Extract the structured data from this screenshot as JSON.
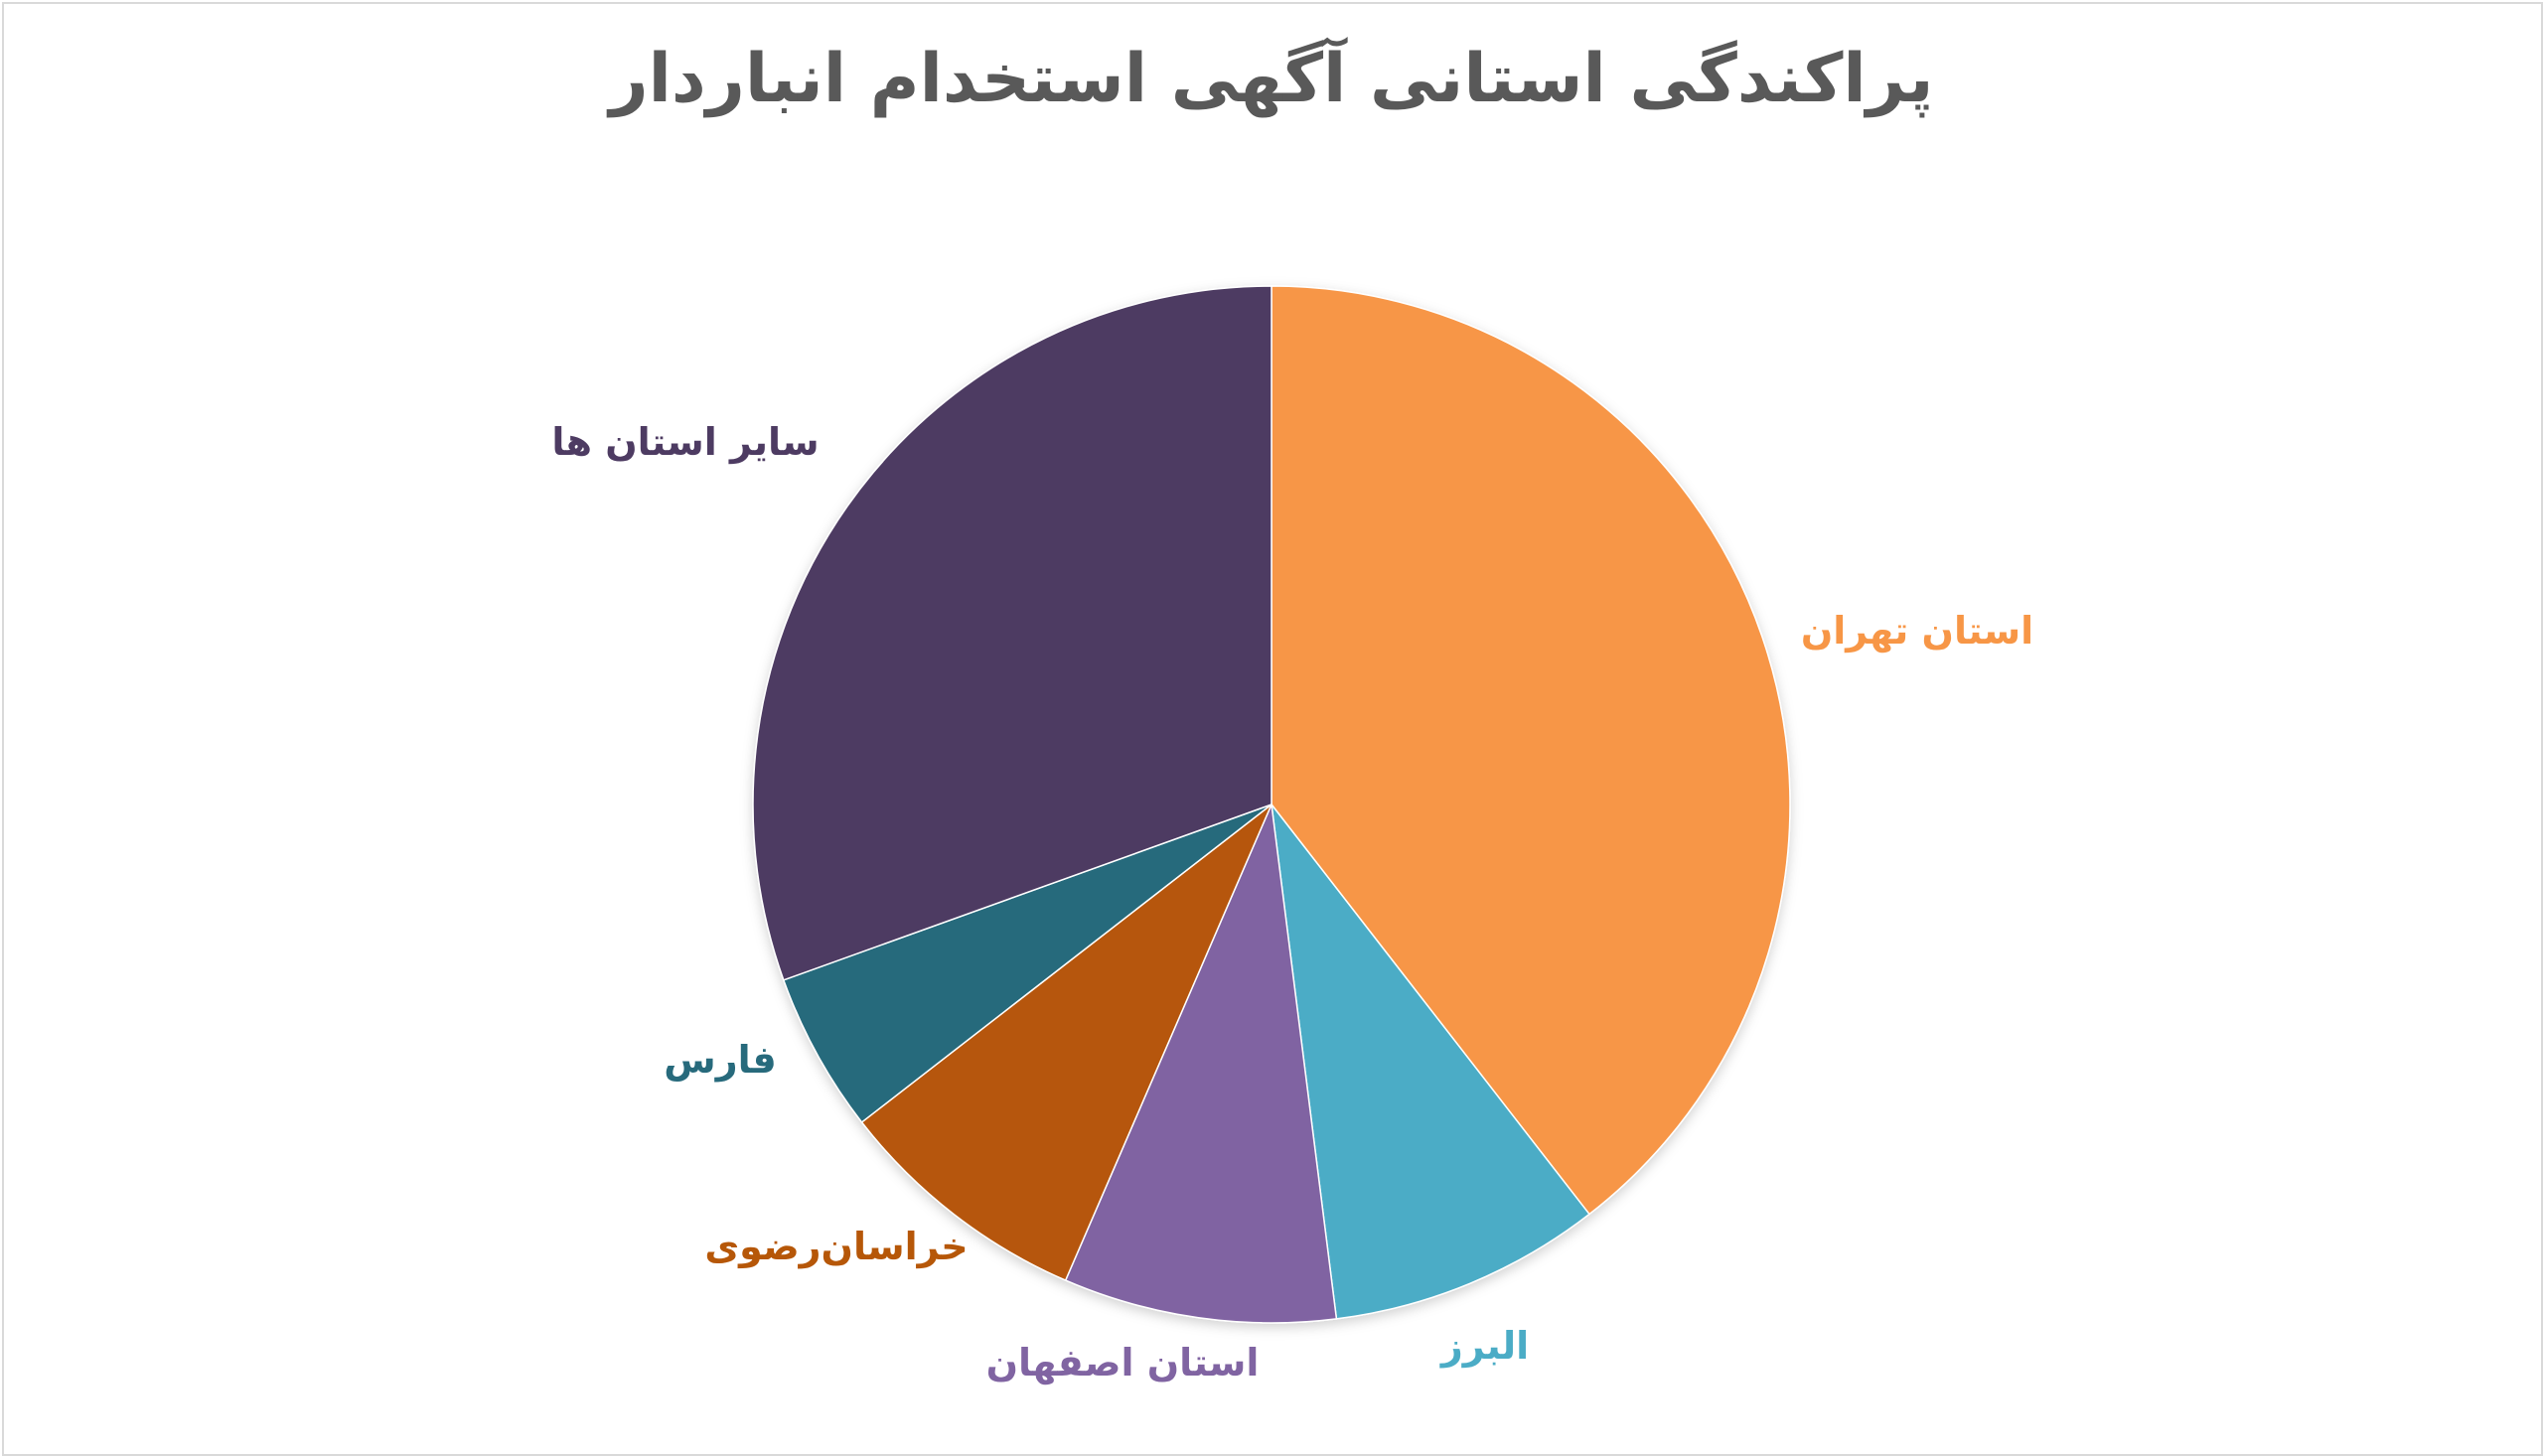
{
  "chart_data": {
    "type": "pie",
    "title": "پراکندگی استانی آگهی استخدام انباردار",
    "start_angle_deg": 0,
    "direction": "clockwise",
    "slices": [
      {
        "label": "استان تهران",
        "value": 39.5,
        "color": "#F79646"
      },
      {
        "label": "البرز",
        "value": 8.5,
        "color": "#4BACC6"
      },
      {
        "label": "استان اصفهان",
        "value": 8.5,
        "color": "#8064A2"
      },
      {
        "label": "خراسان‌رضوی",
        "value": 8.0,
        "color": "#B65708"
      },
      {
        "label": "فارس",
        "value": 5.0,
        "color": "#276A7C"
      },
      {
        "label": "سایر استان ها",
        "value": 30.5,
        "color": "#4D3B62"
      }
    ]
  }
}
